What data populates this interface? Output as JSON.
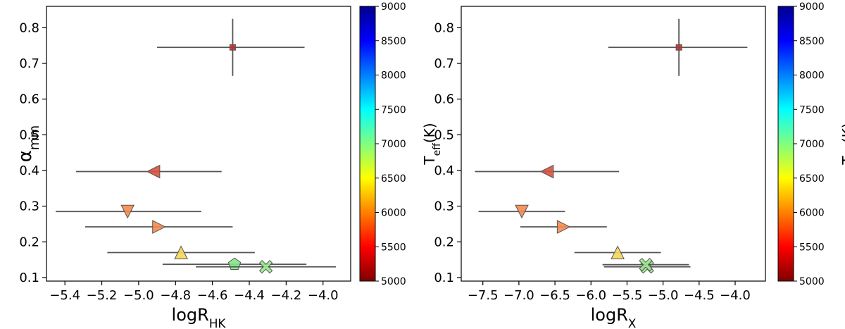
{
  "chart_data": [
    {
      "type": "scatter",
      "xlabel": {
        "main": "logR",
        "sub": "HK"
      },
      "ylabel": {
        "main": "α",
        "sub": "mm"
      },
      "xlim": [
        -5.5,
        -3.85
      ],
      "ylim": [
        0.09,
        0.86
      ],
      "xticks": [
        -5.4,
        -5.2,
        -5.0,
        -4.8,
        -4.6,
        -4.4,
        -4.2,
        -4.0
      ],
      "xtick_labels": [
        "−5.4",
        "−5.2",
        "−5.0",
        "−4.8",
        "−4.6",
        "−4.4",
        "−4.2",
        "−4.0"
      ],
      "yticks": [
        0.1,
        0.2,
        0.3,
        0.4,
        0.5,
        0.6,
        0.7,
        0.8
      ],
      "ytick_labels": [
        "0.1",
        "0.2",
        "0.3",
        "0.4",
        "0.5",
        "0.6",
        "0.7",
        "0.8"
      ],
      "points": [
        {
          "x": -4.49,
          "y": 0.745,
          "xerr_low": 0.41,
          "xerr_high": 0.39,
          "yerr": 0.08,
          "marker": "square",
          "color": "#c03030"
        },
        {
          "x": -4.92,
          "y": 0.397,
          "xerr_low": 0.42,
          "xerr_high": 0.37,
          "yerr": 0,
          "marker": "triangle-left",
          "color": "#d9513c"
        },
        {
          "x": -5.06,
          "y": 0.285,
          "xerr_low": 0.39,
          "xerr_high": 0.4,
          "yerr": 0,
          "marker": "triangle-down",
          "color": "#f58a4f"
        },
        {
          "x": -4.89,
          "y": 0.242,
          "xerr_low": 0.4,
          "xerr_high": 0.4,
          "yerr": 0,
          "marker": "triangle-right",
          "color": "#f58a4f"
        },
        {
          "x": -4.77,
          "y": 0.17,
          "xerr_low": 0.4,
          "xerr_high": 0.4,
          "yerr": 0,
          "marker": "triangle-up",
          "color": "#f5d75a"
        },
        {
          "x": -4.48,
          "y": 0.137,
          "xerr_low": 0.39,
          "xerr_high": 0.39,
          "yerr": 0,
          "marker": "pentagon",
          "color": "#82e888"
        },
        {
          "x": -4.31,
          "y": 0.13,
          "xerr_low": 0.38,
          "xerr_high": 0.38,
          "yerr": 0,
          "marker": "x",
          "color": "#9be88f"
        }
      ]
    },
    {
      "type": "scatter",
      "xlabel": {
        "main": "logR",
        "sub": "X"
      },
      "ylabel": {
        "main": "",
        "sub": ""
      },
      "xlim": [
        -7.8,
        -3.58
      ],
      "ylim": [
        0.09,
        0.86
      ],
      "xticks": [
        -7.5,
        -7.0,
        -6.5,
        -6.0,
        -5.5,
        -5.0,
        -4.5,
        -4.0
      ],
      "xtick_labels": [
        "−7.5",
        "−7.0",
        "−6.5",
        "−6.0",
        "−5.5",
        "−5.0",
        "−4.5",
        "−4.0"
      ],
      "yticks": [
        0.1,
        0.2,
        0.3,
        0.4,
        0.5,
        0.6,
        0.7,
        0.8
      ],
      "ytick_labels": [
        "0.1",
        "0.2",
        "0.3",
        "0.4",
        "0.5",
        "0.6",
        "0.7",
        "0.8"
      ],
      "points": [
        {
          "x": -4.78,
          "y": 0.745,
          "xerr_low": 0.98,
          "xerr_high": 0.95,
          "yerr": 0.08,
          "marker": "square",
          "color": "#c03030"
        },
        {
          "x": -6.61,
          "y": 0.397,
          "xerr_low": 1.0,
          "xerr_high": 1.0,
          "yerr": 0,
          "marker": "triangle-left",
          "color": "#d9513c"
        },
        {
          "x": -6.96,
          "y": 0.285,
          "xerr_low": 0.6,
          "xerr_high": 0.6,
          "yerr": 0,
          "marker": "triangle-down",
          "color": "#f58a4f"
        },
        {
          "x": -6.38,
          "y": 0.242,
          "xerr_low": 0.6,
          "xerr_high": 0.6,
          "yerr": 0,
          "marker": "triangle-right",
          "color": "#f58a4f"
        },
        {
          "x": -5.63,
          "y": 0.17,
          "xerr_low": 0.6,
          "xerr_high": 0.6,
          "yerr": 0,
          "marker": "triangle-up",
          "color": "#f5d75a"
        },
        {
          "x": -5.22,
          "y": 0.13,
          "xerr_low": 0.6,
          "xerr_high": 0.6,
          "yerr": 0,
          "marker": "x",
          "color": "#9be88f"
        },
        {
          "x": -5.24,
          "y": 0.136,
          "xerr_low": 0.6,
          "xerr_high": 0.6,
          "yerr": 0,
          "marker": "x",
          "color": "#9be88f"
        }
      ]
    }
  ],
  "colorbar": {
    "label": {
      "main": "T",
      "sub": "eff",
      "tail": "(K)"
    },
    "range": [
      5000,
      9000
    ],
    "ticks": [
      5000,
      5500,
      6000,
      6500,
      7000,
      7500,
      8000,
      8500,
      9000
    ],
    "tick_labels": [
      "5000",
      "5500",
      "6000",
      "6500",
      "7000",
      "7500",
      "8000",
      "8500",
      "9000"
    ],
    "colormap": [
      "#800000",
      "#ff0000",
      "#ff8000",
      "#ffff00",
      "#80ff80",
      "#00ffff",
      "#0080ff",
      "#0000ff",
      "#00008f"
    ]
  }
}
